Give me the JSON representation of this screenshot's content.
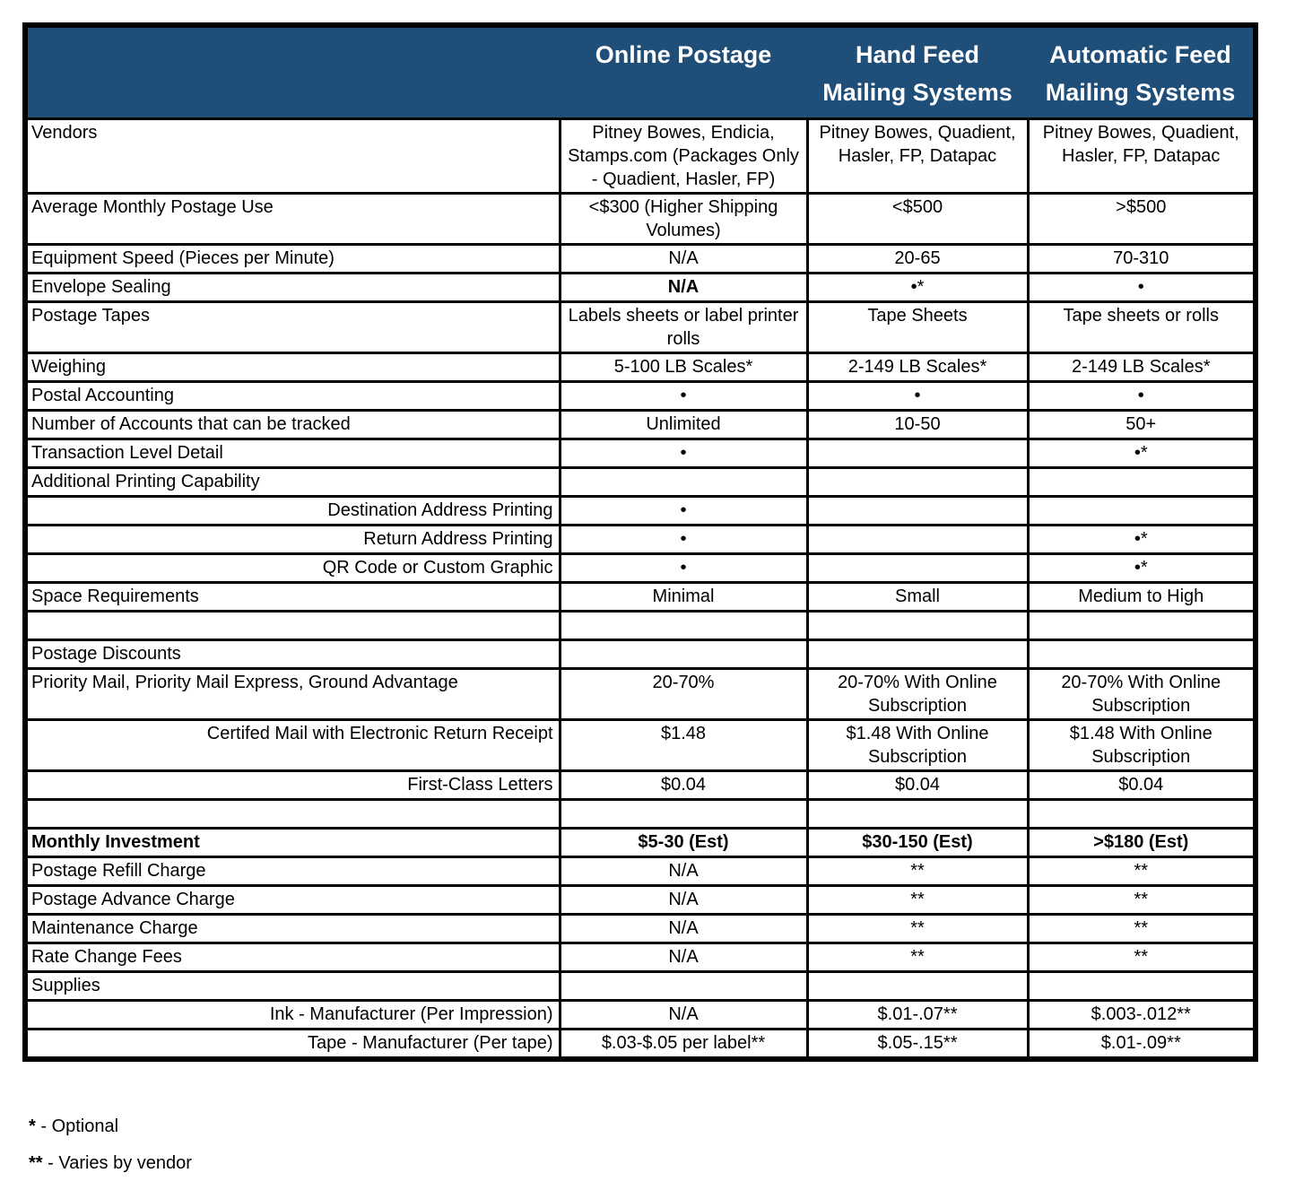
{
  "colors": {
    "header_bg": "#1F4E79",
    "header_text": "#FFFFFF",
    "border": "#000000"
  },
  "table": {
    "corner_label": "",
    "columns": [
      "Online Postage",
      "Hand Feed Mailing Systems",
      "Automatic Feed Mailing Systems"
    ],
    "rows": [
      {
        "label": "Vendors",
        "align": "left",
        "cells": [
          "Pitney Bowes, Endicia, Stamps.com (Packages Only - Quadient, Hasler, FP)",
          "Pitney Bowes, Quadient, Hasler, FP, Datapac",
          "Pitney Bowes, Quadient, Hasler, FP, Datapac"
        ]
      },
      {
        "label": "Average Monthly Postage Use",
        "align": "left",
        "cells": [
          "<$300 (Higher Shipping Volumes)",
          "<$500",
          ">$500"
        ]
      },
      {
        "label": "Equipment Speed (Pieces per Minute)",
        "align": "left",
        "cells": [
          "N/A",
          "20-65",
          "70-310"
        ]
      },
      {
        "label": "Envelope Sealing",
        "align": "left",
        "bold_cells": [
          0
        ],
        "cells": [
          "N/A",
          "•*",
          "•"
        ]
      },
      {
        "label": "Postage Tapes",
        "align": "left",
        "cells": [
          "Labels sheets or label printer rolls",
          "Tape Sheets",
          "Tape sheets or rolls"
        ]
      },
      {
        "label": "Weighing",
        "align": "left",
        "cells": [
          "5-100 LB Scales*",
          "2-149 LB Scales*",
          "2-149 LB Scales*"
        ]
      },
      {
        "label": "Postal Accounting",
        "align": "left",
        "cells": [
          "•",
          "•",
          "•"
        ]
      },
      {
        "label": "Number of Accounts that can be tracked",
        "align": "left",
        "cells": [
          "Unlimited",
          "10-50",
          "50+"
        ]
      },
      {
        "label": "Transaction Level Detail",
        "align": "left",
        "cells": [
          "•",
          "",
          "•*"
        ]
      },
      {
        "label": "Additional Printing Capability",
        "align": "left",
        "cells": [
          "",
          "",
          ""
        ]
      },
      {
        "label": "Destination Address Printing",
        "align": "right",
        "cells": [
          "•",
          "",
          ""
        ]
      },
      {
        "label": "Return Address Printing",
        "align": "right",
        "cells": [
          "•",
          "",
          "•*"
        ]
      },
      {
        "label": "QR Code or Custom Graphic",
        "align": "right",
        "cells": [
          "•",
          "",
          "•*"
        ]
      },
      {
        "label": "Space Requirements",
        "align": "left",
        "cells": [
          "Minimal",
          "Small",
          "Medium to High"
        ]
      },
      {
        "label": "",
        "align": "left",
        "cells": [
          "",
          "",
          ""
        ]
      },
      {
        "label": "Postage Discounts",
        "align": "left",
        "cells": [
          "",
          "",
          ""
        ]
      },
      {
        "label": "Priority Mail, Priority Mail Express, Ground Advantage",
        "align": "left",
        "cells": [
          "20-70%",
          "20-70% With Online Subscription",
          "20-70% With Online Subscription"
        ]
      },
      {
        "label": "Certifed Mail with Electronic Return Receipt",
        "align": "right",
        "cells": [
          "$1.48",
          "$1.48 With Online Subscription",
          "$1.48 With Online Subscription"
        ]
      },
      {
        "label": "First-Class Letters",
        "align": "right",
        "cells": [
          "$0.04",
          "$0.04",
          "$0.04"
        ]
      },
      {
        "label": "",
        "align": "left",
        "cells": [
          "",
          "",
          ""
        ]
      },
      {
        "label": "Monthly Investment",
        "align": "left",
        "bold": true,
        "cells": [
          "$5-30 (Est)",
          "$30-150 (Est)",
          ">$180 (Est)"
        ]
      },
      {
        "label": "Postage Refill Charge",
        "align": "left",
        "cells": [
          "N/A",
          "**",
          "**"
        ]
      },
      {
        "label": "Postage Advance Charge",
        "align": "left",
        "cells": [
          "N/A",
          "**",
          "**"
        ]
      },
      {
        "label": "Maintenance Charge",
        "align": "left",
        "cells": [
          "N/A",
          "**",
          "**"
        ]
      },
      {
        "label": "Rate Change Fees",
        "align": "left",
        "cells": [
          "N/A",
          "**",
          "**"
        ]
      },
      {
        "label": "Supplies",
        "align": "left",
        "cells": [
          "",
          "",
          ""
        ]
      },
      {
        "label": "Ink - Manufacturer (Per Impression)",
        "align": "right",
        "cells": [
          "N/A",
          "$.01-.07**",
          "$.003-.012**"
        ]
      },
      {
        "label": "Tape - Manufacturer (Per tape)",
        "align": "right",
        "cells": [
          "$.03-$.05 per label**",
          "$.05-.15**",
          "$.01-.09**"
        ]
      }
    ]
  },
  "footnotes": [
    {
      "marker": "*",
      "text": " - Optional"
    },
    {
      "marker": "**",
      "text": " - Varies by vendor"
    }
  ]
}
